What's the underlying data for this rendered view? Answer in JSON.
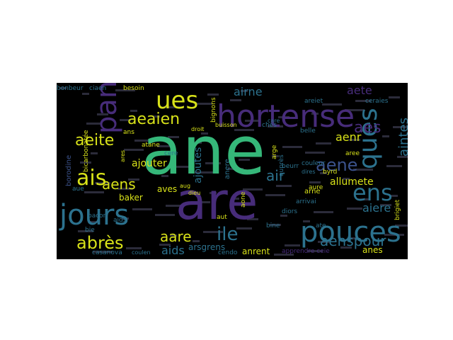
{
  "figure": {
    "background": "#000000",
    "page_background": "#ffffff"
  },
  "palette": {
    "green": "#35b779",
    "purple": "#472c7a",
    "teal": "#2c728e",
    "yellow": "#d8e219",
    "lightgreen": "#5ec962",
    "blue": "#3b528b",
    "darkpurple": "#440154",
    "cyan": "#21918c"
  },
  "words": [
    {
      "text": "ane",
      "color": "green"
    },
    {
      "text": "are",
      "color": "purple"
    },
    {
      "text": "hortense",
      "color": "purple"
    },
    {
      "text": "pouces",
      "color": "teal"
    },
    {
      "text": "jours",
      "color": "teal"
    },
    {
      "text": "ques",
      "color": "teal"
    },
    {
      "text": "pan",
      "color": "purple"
    },
    {
      "text": "ues",
      "color": "yellow"
    },
    {
      "text": "ens",
      "color": "teal"
    },
    {
      "text": "ais",
      "color": "yellow"
    },
    {
      "text": "abrès",
      "color": "yellow"
    },
    {
      "text": "aeaien",
      "color": "yellow"
    },
    {
      "text": "aeite",
      "color": "yellow"
    },
    {
      "text": "aens",
      "color": "yellow"
    },
    {
      "text": "aare",
      "color": "yellow"
    },
    {
      "text": "ile",
      "color": "teal"
    },
    {
      "text": "aene",
      "color": "blue"
    },
    {
      "text": "aenspour",
      "color": "teal"
    },
    {
      "text": "aiere",
      "color": "teal"
    },
    {
      "text": "aintes",
      "color": "teal"
    },
    {
      "text": "aes",
      "color": "purple"
    },
    {
      "text": "aenr",
      "color": "yellow"
    },
    {
      "text": "airne",
      "color": "teal"
    },
    {
      "text": "aete",
      "color": "purple"
    },
    {
      "text": "aids",
      "color": "teal"
    },
    {
      "text": "air",
      "color": "teal"
    },
    {
      "text": "ajoutes",
      "color": "teal"
    },
    {
      "text": "ajouter",
      "color": "yellow"
    },
    {
      "text": "allumete",
      "color": "yellow"
    },
    {
      "text": "anes",
      "color": "yellow"
    },
    {
      "text": "anrent",
      "color": "yellow"
    },
    {
      "text": "arsgrens",
      "color": "teal"
    },
    {
      "text": "aves",
      "color": "yellow"
    },
    {
      "text": "baker",
      "color": "yellow"
    },
    {
      "text": "bonbeur",
      "color": "teal"
    },
    {
      "text": "ciaen",
      "color": "teal"
    },
    {
      "text": "besoin",
      "color": "yellow"
    },
    {
      "text": "belle",
      "color": "teal"
    },
    {
      "text": "ceraies",
      "color": "teal"
    },
    {
      "text": "areiet",
      "color": "teal"
    },
    {
      "text": "ans",
      "color": "yellow"
    },
    {
      "text": "bine",
      "color": "teal"
    },
    {
      "text": "apprendre ceie",
      "color": "purple"
    },
    {
      "text": "casanova",
      "color": "teal"
    },
    {
      "text": "byrd",
      "color": "yellow"
    },
    {
      "text": "aree",
      "color": "yellow"
    },
    {
      "text": "arne",
      "color": "yellow"
    },
    {
      "text": "aure",
      "color": "yellow"
    },
    {
      "text": "arrivai",
      "color": "teal"
    },
    {
      "text": "diors",
      "color": "teal"
    },
    {
      "text": "aone",
      "color": "yellow"
    },
    {
      "text": "anere",
      "color": "teal"
    },
    {
      "text": "bignons",
      "color": "yellow"
    },
    {
      "text": "ches",
      "color": "teal"
    },
    {
      "text": "aue",
      "color": "teal"
    },
    {
      "text": "bie",
      "color": "teal"
    },
    {
      "text": "cendo",
      "color": "teal"
    },
    {
      "text": "bicarbonatée",
      "color": "yellow"
    },
    {
      "text": "borodine",
      "color": "blue"
    },
    {
      "text": "brigiet",
      "color": "yellow"
    },
    {
      "text": "beurr",
      "color": "teal"
    },
    {
      "text": "auprès",
      "color": "teal"
    },
    {
      "text": "couleur",
      "color": "teal"
    },
    {
      "text": "ate",
      "color": "teal"
    },
    {
      "text": "atane",
      "color": "yellow"
    },
    {
      "text": "cere",
      "color": "teal"
    },
    {
      "text": "aids",
      "color": "teal"
    },
    {
      "text": "buisson",
      "color": "yellow"
    },
    {
      "text": "droit",
      "color": "yellow"
    },
    {
      "text": "aut",
      "color": "yellow"
    },
    {
      "text": "bacon",
      "color": "teal"
    },
    {
      "text": "aug",
      "color": "yellow"
    },
    {
      "text": "dieu",
      "color": "yellow"
    },
    {
      "text": "care",
      "color": "teal"
    },
    {
      "text": "arge",
      "color": "yellow"
    },
    {
      "text": "coulen",
      "color": "teal"
    },
    {
      "text": "ares",
      "color": "yellow"
    },
    {
      "text": "dires",
      "color": "teal"
    }
  ]
}
